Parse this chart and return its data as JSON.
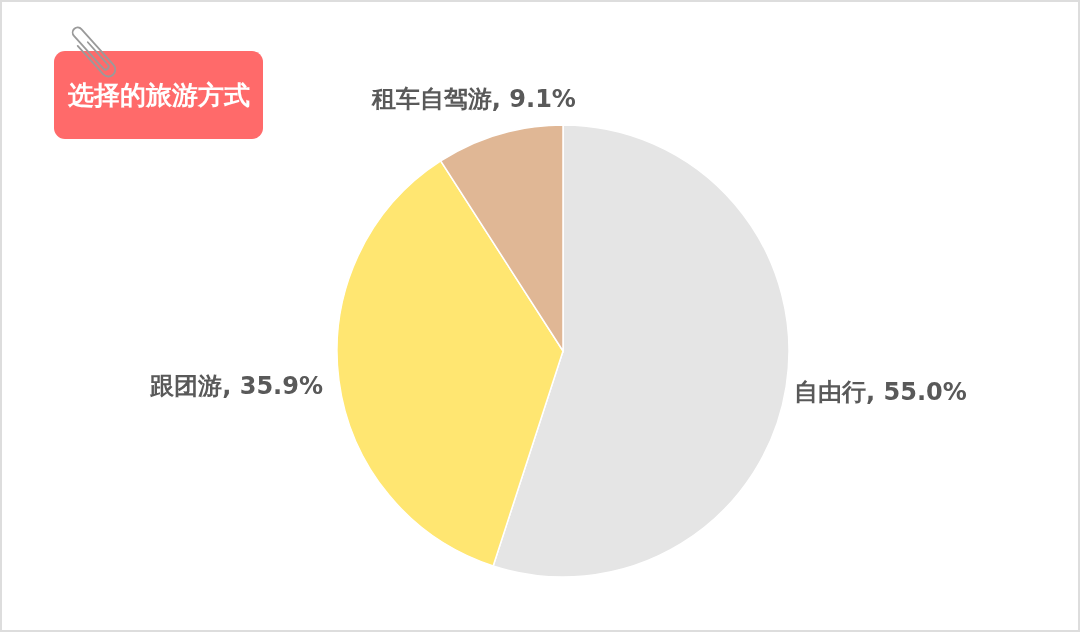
{
  "chart_data": {
    "type": "pie",
    "title": "选择的旅游方式",
    "categories": [
      "自由行",
      "跟团游",
      "租车自驾游"
    ],
    "values": [
      55.0,
      35.9,
      9.1
    ],
    "colors": [
      "#e5e5e5",
      "#ffe671",
      "#e0b795"
    ],
    "value_labels": [
      "55.0%",
      "35.9%",
      "9.1%"
    ]
  }
}
